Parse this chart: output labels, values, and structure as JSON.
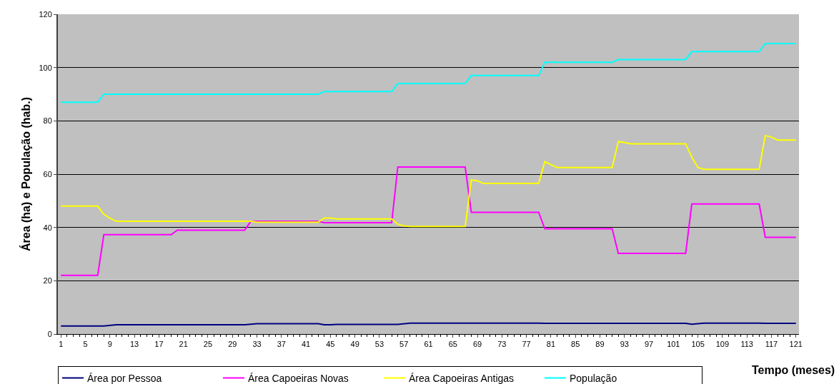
{
  "chart_data": {
    "type": "line",
    "xlabel": "Tempo (meses)",
    "ylabel": "Área (ha) e População (hab.)",
    "xlim": [
      0.5,
      121.5
    ],
    "xticks": [
      1,
      5,
      9,
      13,
      17,
      21,
      25,
      29,
      33,
      37,
      41,
      45,
      49,
      53,
      57,
      61,
      65,
      69,
      73,
      77,
      81,
      85,
      89,
      93,
      97,
      101,
      105,
      109,
      113,
      117,
      121
    ],
    "ylim": [
      0,
      120
    ],
    "yticks": [
      0,
      20,
      40,
      60,
      80,
      100,
      120
    ],
    "grid": "y",
    "legend": "bottom",
    "marker": "none",
    "line_style": "solid",
    "series": [
      {
        "name": "Área por Pessoa",
        "color": "#000080",
        "x": [
          1,
          8,
          10,
          31,
          33,
          43,
          44,
          45,
          46,
          56,
          58,
          79,
          80,
          103,
          104,
          106,
          115,
          116,
          121
        ],
        "values": [
          3.0,
          3.0,
          3.5,
          3.5,
          3.9,
          3.9,
          3.5,
          3.5,
          3.6,
          3.6,
          4.1,
          4.1,
          4.0,
          4.0,
          3.7,
          4.1,
          4.1,
          4.0,
          4.0
        ]
      },
      {
        "name": "Área Capoeiras Novas",
        "color": "#ff00ff",
        "x": [
          1,
          7,
          8,
          19,
          20,
          31,
          32,
          43,
          44,
          55,
          56,
          67,
          68,
          79,
          80,
          91,
          92,
          103,
          104,
          115,
          116,
          121
        ],
        "values": [
          22.0,
          22.0,
          37.3,
          37.3,
          39.0,
          39.0,
          42.3,
          42.3,
          41.8,
          41.8,
          62.7,
          62.7,
          45.7,
          45.7,
          39.5,
          39.5,
          30.3,
          30.3,
          48.8,
          48.8,
          36.3,
          36.3
        ]
      },
      {
        "name": "Área Capoeiras Antigas",
        "color": "#ffff00",
        "x": [
          1,
          7,
          8,
          9,
          10,
          32,
          33,
          43,
          44,
          45,
          46,
          55,
          56,
          57,
          58,
          67,
          68,
          69,
          70,
          79,
          80,
          81,
          82,
          91,
          92,
          93,
          94,
          103,
          104,
          105,
          106,
          115,
          116,
          117,
          118,
          121
        ],
        "values": [
          48.0,
          48.0,
          45.0,
          43.5,
          42.3,
          42.3,
          42.0,
          42.0,
          43.5,
          43.5,
          43.2,
          43.2,
          41.2,
          40.6,
          40.4,
          40.4,
          57.8,
          57.5,
          56.5,
          56.5,
          64.7,
          63.6,
          62.5,
          62.5,
          72.2,
          71.9,
          71.4,
          71.4,
          66.4,
          62.5,
          61.8,
          61.8,
          74.5,
          73.9,
          72.8,
          72.8
        ]
      },
      {
        "name": "População",
        "color": "#00ffff",
        "x": [
          1,
          7,
          8,
          43,
          44,
          55,
          56,
          67,
          68,
          79,
          80,
          91,
          92,
          103,
          104,
          115,
          116,
          121
        ],
        "values": [
          87,
          87,
          90,
          90,
          91,
          91,
          94,
          94,
          97,
          97,
          102,
          102,
          103,
          103,
          106,
          106,
          109,
          109
        ]
      }
    ]
  }
}
